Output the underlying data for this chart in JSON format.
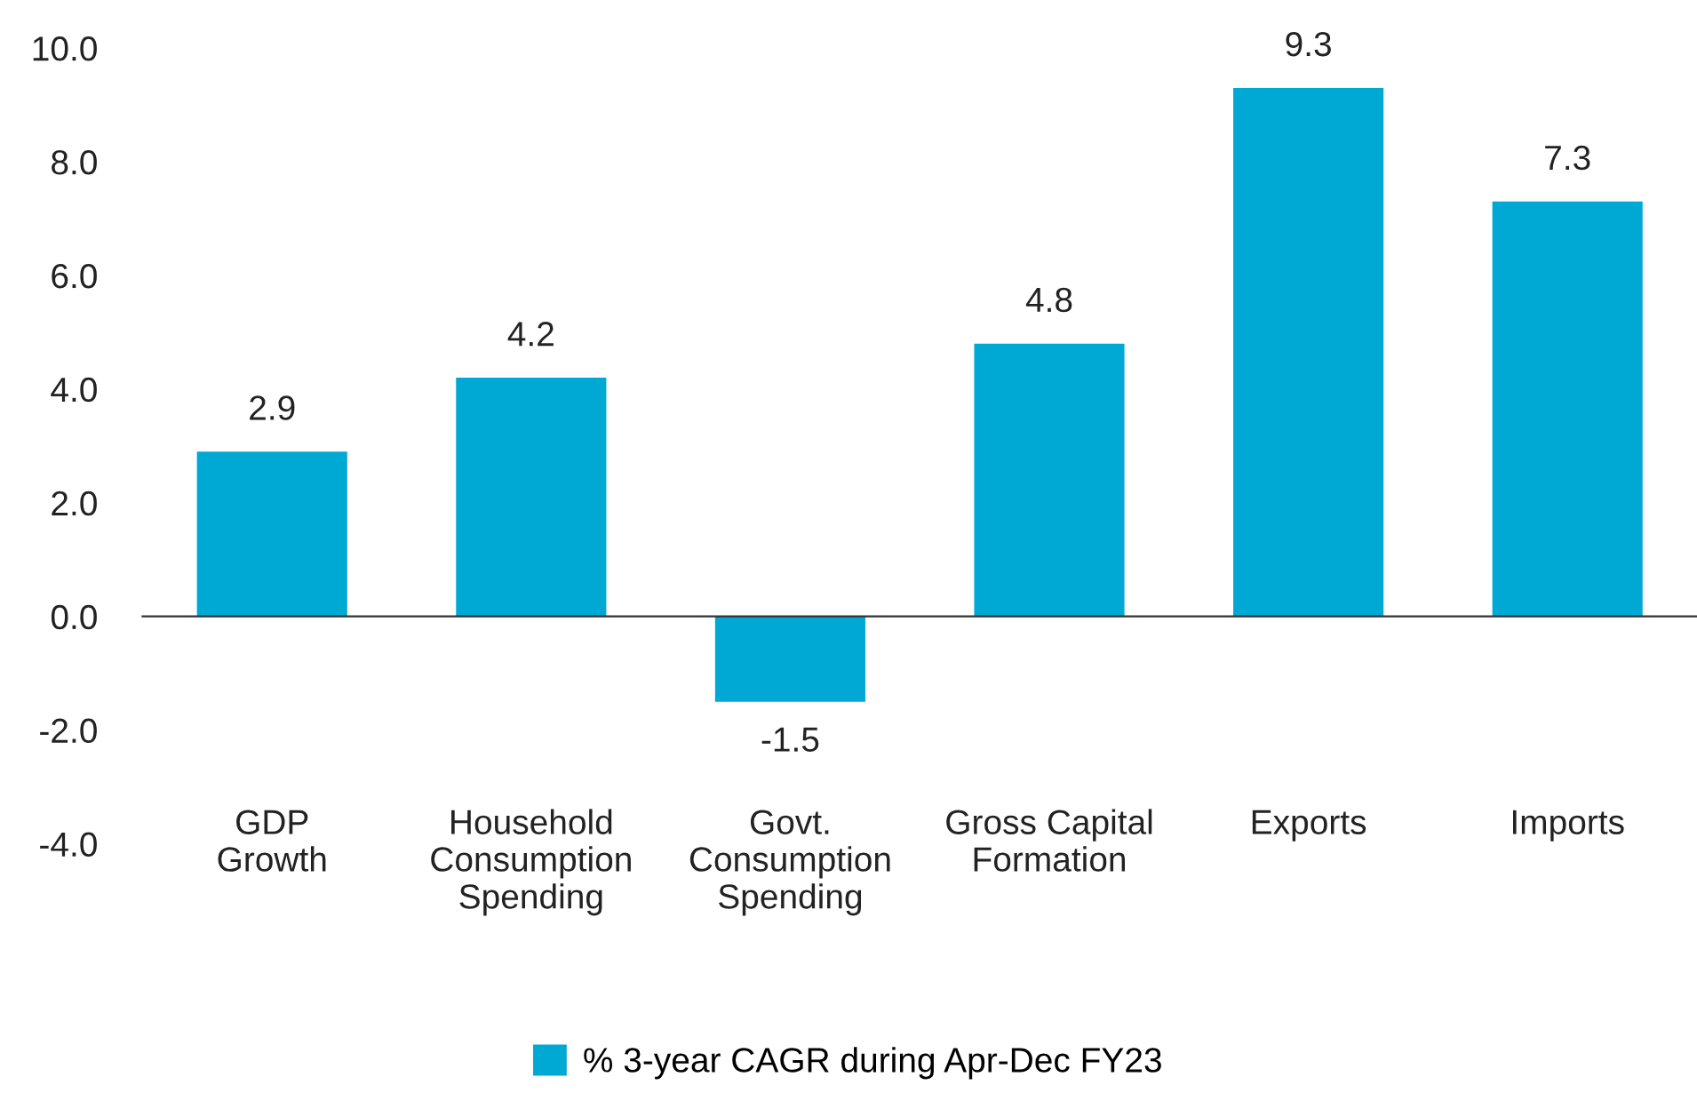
{
  "chart_data": {
    "type": "bar",
    "categories": [
      "GDP\nGrowth",
      "Household\nConsumption\nSpending",
      "Govt.\nConsumption\nSpending",
      "Gross Capital\nFormation",
      "Exports",
      "Imports"
    ],
    "series": [
      {
        "name": "% 3-year CAGR during Apr-Dec FY23",
        "color": "#00a9d4",
        "values": [
          2.9,
          4.2,
          -1.5,
          4.8,
          9.3,
          7.3
        ]
      }
    ],
    "ylim": [
      -4,
      10
    ],
    "yticks": [
      {
        "value": -4,
        "label": "-4.0"
      },
      {
        "value": -2,
        "label": "-2.0"
      },
      {
        "value": 0,
        "label": "0.0"
      },
      {
        "value": 2,
        "label": "2.0"
      },
      {
        "value": 4,
        "label": "4.0"
      },
      {
        "value": 6,
        "label": "6.0"
      },
      {
        "value": 8,
        "label": "8.0"
      },
      {
        "value": 10,
        "label": "10.0"
      }
    ],
    "data_labels": true,
    "legend": "bottom"
  }
}
